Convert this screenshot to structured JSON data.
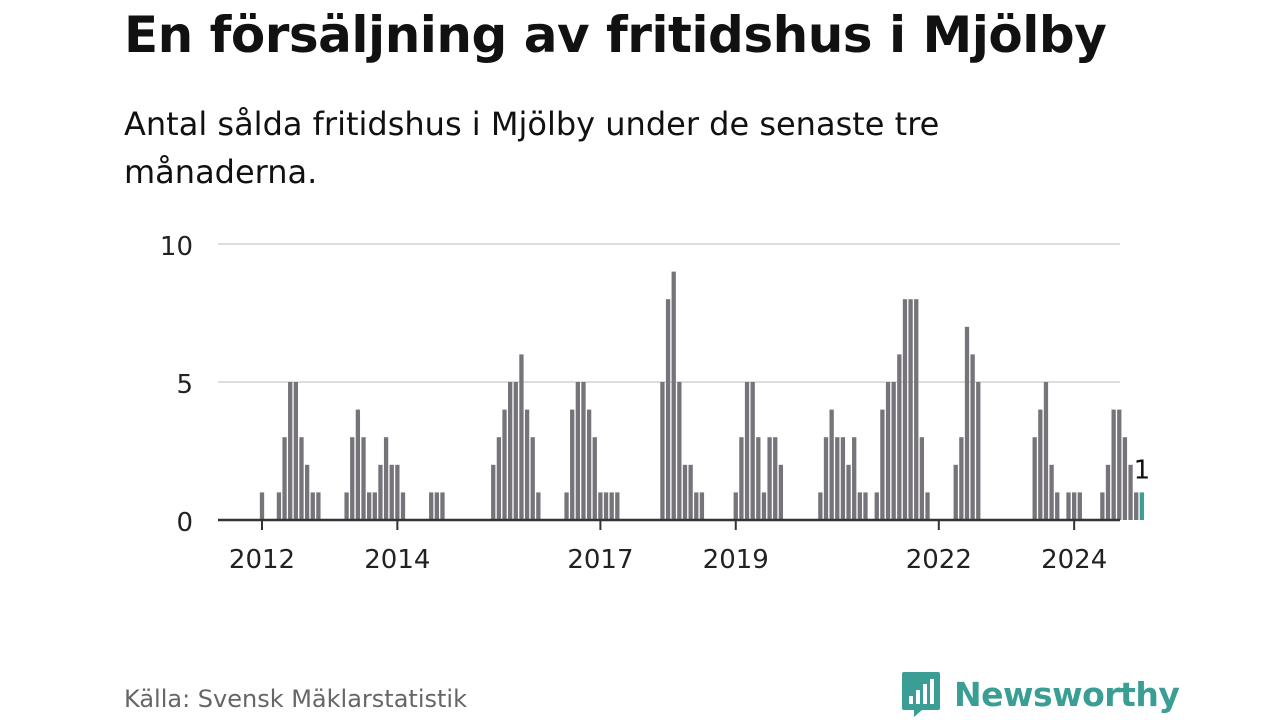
{
  "title": "En försäljning av fritidshus i Mjölby",
  "subtitle": "Antal sålda fritidshus i Mjölby under de senaste tre månaderna.",
  "source": "Källa: Svensk Mäklarstatistik",
  "brand": {
    "name": "Newsworthy",
    "icon": "newsworthy-logo-icon",
    "color": "#3a9e94"
  },
  "chart_data": {
    "type": "bar",
    "title": "En försäljning av fritidshus i Mjölby",
    "subtitle": "Antal sålda fritidshus i Mjölby under de senaste tre månaderna.",
    "xlabel": "",
    "ylabel": "",
    "x_tick_labels": [
      "2012",
      "2014",
      "2017",
      "2019",
      "2022",
      "2024"
    ],
    "x_tick_positions": [
      0,
      24,
      60,
      84,
      120,
      144
    ],
    "y_ticks": [
      0,
      5,
      10
    ],
    "ylim": [
      0,
      10
    ],
    "grid": true,
    "bar_color": "#76747a",
    "highlight_color": "#3a9e94",
    "highlight_label": "1",
    "values": [
      1,
      0,
      0,
      1,
      3,
      5,
      5,
      3,
      2,
      1,
      1,
      0,
      0,
      0,
      0,
      1,
      3,
      4,
      3,
      1,
      1,
      2,
      3,
      2,
      2,
      1,
      0,
      0,
      0,
      0,
      1,
      1,
      1,
      0,
      0,
      0,
      0,
      0,
      0,
      0,
      0,
      2,
      3,
      4,
      5,
      5,
      6,
      4,
      3,
      1,
      0,
      0,
      0,
      0,
      1,
      4,
      5,
      5,
      4,
      3,
      1,
      1,
      1,
      1,
      0,
      0,
      0,
      0,
      0,
      0,
      0,
      5,
      8,
      9,
      5,
      2,
      2,
      1,
      1,
      0,
      0,
      0,
      0,
      0,
      1,
      3,
      5,
      5,
      3,
      1,
      3,
      3,
      2,
      0,
      0,
      0,
      0,
      0,
      0,
      1,
      3,
      4,
      3,
      3,
      2,
      3,
      1,
      1,
      0,
      1,
      4,
      5,
      5,
      6,
      8,
      8,
      8,
      3,
      1,
      0,
      0,
      0,
      0,
      2,
      3,
      7,
      6,
      5,
      0,
      0,
      0,
      0,
      0,
      0,
      0,
      0,
      0,
      3,
      4,
      5,
      2,
      1,
      0,
      1,
      1,
      1,
      0,
      0,
      0,
      1,
      2,
      4,
      4,
      3,
      2,
      1,
      1
    ]
  }
}
